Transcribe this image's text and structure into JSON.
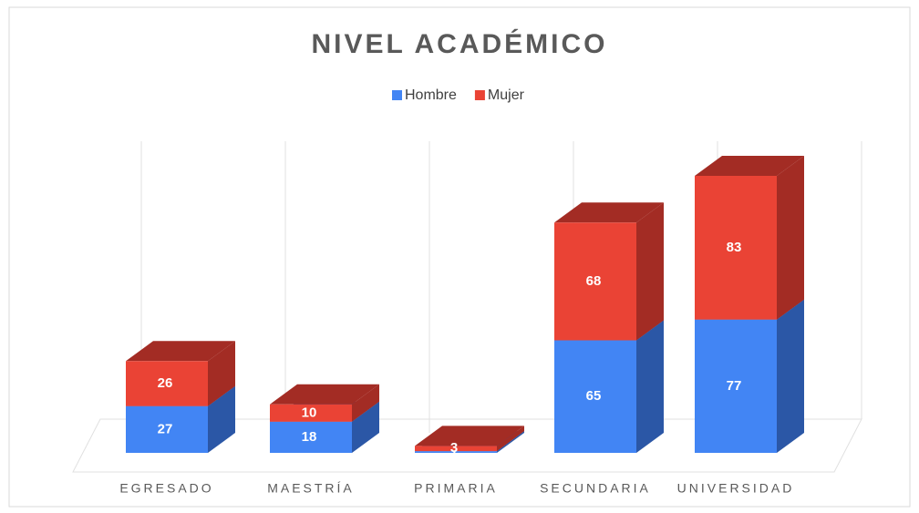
{
  "chart_data": {
    "type": "bar3d_stacked",
    "title": "NIVEL ACADÉMICO",
    "categories": [
      "EGRESADO",
      "MAESTRÍA",
      "PRIMARIA",
      "SECUNDARIA",
      "UNIVERSIDAD"
    ],
    "series": [
      {
        "name": "Hombre",
        "color": "#4285f4",
        "side": "#2b57a6",
        "values": [
          27,
          18,
          1,
          65,
          77
        ]
      },
      {
        "name": "Mujer",
        "color": "#ea4335",
        "side": "#a32c24",
        "values": [
          26,
          10,
          3,
          68,
          83
        ]
      }
    ],
    "ylim": [
      0,
      180
    ],
    "legend": "top",
    "grid": true
  }
}
